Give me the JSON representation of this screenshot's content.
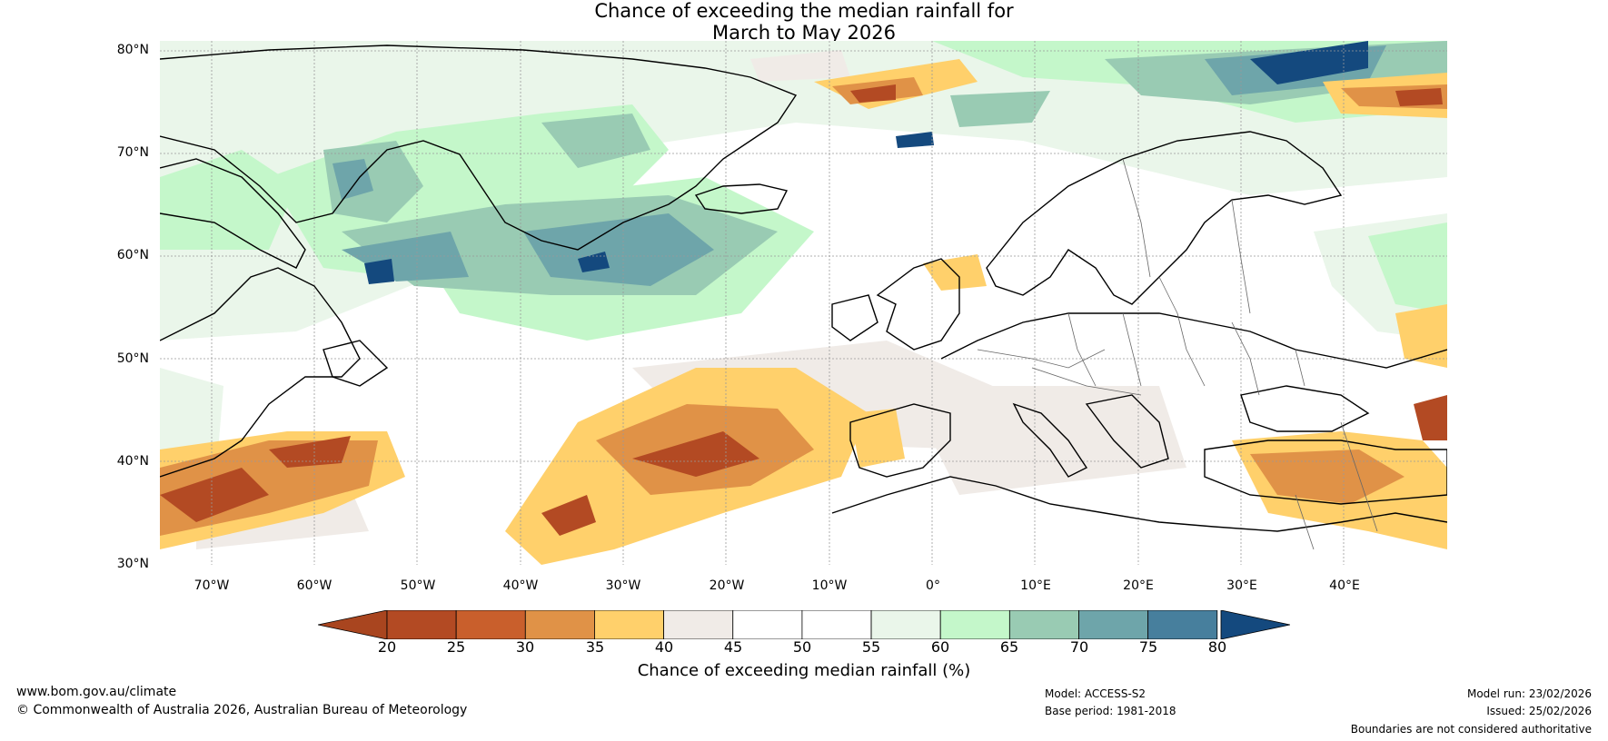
{
  "title": {
    "line1": "Chance of exceeding the median rainfall for",
    "line2": "March to May 2026"
  },
  "map": {
    "lon_range": [
      -75,
      50
    ],
    "lat_range": [
      30,
      81
    ],
    "lat_ticks": [
      "80°N",
      "70°N",
      "60°N",
      "50°N",
      "40°N",
      "30°N"
    ],
    "lat_values": [
      80,
      70,
      60,
      50,
      40,
      30
    ],
    "lon_ticks": [
      "70°W",
      "60°W",
      "50°W",
      "40°W",
      "30°W",
      "20°W",
      "10°W",
      "0°",
      "10°E",
      "20°E",
      "30°E",
      "40°E"
    ],
    "lon_values": [
      -70,
      -60,
      -50,
      -40,
      -30,
      -20,
      -10,
      0,
      10,
      20,
      30,
      40
    ],
    "features": {
      "greenland": "landmass outline",
      "iceland": "landmass outline",
      "europe": "coastlines and country boundaries",
      "north_america": "coastline"
    }
  },
  "colorbar": {
    "ticks": [
      "20",
      "25",
      "30",
      "35",
      "40",
      "45",
      "50",
      "55",
      "60",
      "65",
      "70",
      "75",
      "80"
    ],
    "colors": [
      "#b34a23",
      "#c95f2c",
      "#e09247",
      "#ffd06b",
      "#f0ebe7",
      "#ffffff",
      "#ffffff",
      "#eaf6ea",
      "#c4f7ca",
      "#99cbb3",
      "#6ea5aa",
      "#477f9d"
    ],
    "low_color": "#a9451f",
    "high_color": "#14497e",
    "label": "Chance of exceeding median rainfall (%)"
  },
  "footer": {
    "website": "www.bom.gov.au/climate",
    "copyright": "© Commonwealth of Australia 2026, Australian Bureau of Meteorology",
    "model": "Model: ACCESS-S2",
    "base_period": "Base period: 1981-2018",
    "model_run": "Model run: 23/02/2026",
    "issued": "Issued: 25/02/2026",
    "disclaimer": "Boundaries are not considered authoritative"
  }
}
